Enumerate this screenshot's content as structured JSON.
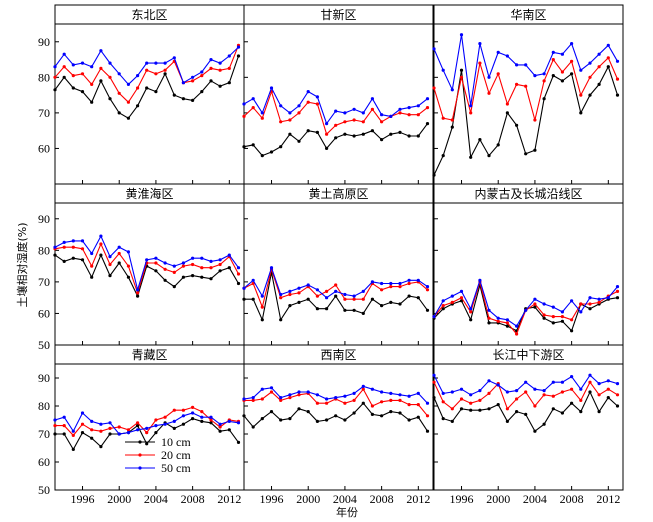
{
  "chart_data": {
    "type": "line",
    "ylabel": "土壤相对湿度(%)",
    "xlabel": "年份",
    "xlim": [
      1993,
      2013.6
    ],
    "ylim": [
      50,
      95
    ],
    "row_yticks": [
      [
        50,
        60,
        70,
        80,
        90
      ],
      [
        50,
        60,
        70,
        80,
        90
      ],
      [
        50,
        60,
        70,
        80,
        90
      ]
    ],
    "row_yticks_shown": [
      [
        "60",
        "70",
        "80",
        "90"
      ],
      [
        "50",
        "60",
        "70",
        "80",
        "90"
      ],
      [
        "50",
        "60",
        "70",
        "80",
        "90"
      ]
    ],
    "xticks": [
      1996,
      2000,
      2004,
      2008,
      2012
    ],
    "xticks_shown": [
      "1996",
      "2000",
      "2004",
      "2008",
      "2012"
    ],
    "x": [
      1993,
      1994,
      1995,
      1996,
      1997,
      1998,
      1999,
      2000,
      2001,
      2002,
      2003,
      2004,
      2005,
      2006,
      2007,
      2008,
      2009,
      2010,
      2011,
      2012,
      2013
    ],
    "series_names": [
      "10 cm",
      "20 cm",
      "50 cm"
    ],
    "series_colors": [
      "#000000",
      "#ff0000",
      "#0000ff"
    ],
    "panels": [
      {
        "title": "东北区",
        "series": [
          [
            76.5,
            80,
            77,
            76,
            73,
            79,
            74,
            70,
            68.5,
            72,
            77,
            76,
            81,
            75,
            74,
            73.5,
            76,
            79,
            77.5,
            78.5,
            86
          ],
          [
            80,
            83,
            80.5,
            81,
            78,
            82.5,
            80,
            75.5,
            73,
            77,
            82,
            81,
            82,
            84.5,
            78.5,
            79,
            80.5,
            82.5,
            82,
            82.5,
            89
          ],
          [
            83,
            86.5,
            83.5,
            84,
            83,
            87.5,
            84,
            81,
            78,
            80.5,
            84,
            84,
            84,
            85.5,
            78.5,
            80,
            81.5,
            85,
            84,
            86,
            88.5
          ]
        ]
      },
      {
        "title": "甘新区",
        "series": [
          [
            60.5,
            61,
            58,
            59,
            60.5,
            64,
            62,
            65,
            64.5,
            60,
            63,
            64,
            63.5,
            64,
            65,
            62.5,
            64,
            64.5,
            63.5,
            63.5,
            67
          ],
          [
            69,
            71.5,
            68.5,
            76,
            67.5,
            68,
            70,
            73,
            72.5,
            64,
            66.5,
            67.5,
            68,
            67.5,
            71,
            67.5,
            69,
            70,
            69.5,
            69.5,
            71.5
          ],
          [
            72.5,
            74,
            70,
            77,
            72,
            70,
            72,
            76,
            74.5,
            67,
            70.5,
            70,
            71,
            70,
            74,
            69.5,
            69,
            71,
            71.5,
            72,
            74
          ]
        ]
      },
      {
        "title": "华南区",
        "series": [
          [
            52.5,
            58,
            66,
            82,
            57.5,
            62.5,
            58,
            61,
            70,
            66.5,
            58.5,
            59.5,
            74,
            80.5,
            79,
            81,
            70,
            75,
            78,
            83,
            75
          ],
          [
            77,
            68.5,
            68,
            80,
            70,
            84,
            75.5,
            81,
            72.5,
            78,
            77.5,
            68,
            79,
            85,
            81.5,
            84.5,
            75,
            80,
            83,
            85.5,
            79.5
          ],
          [
            88,
            82,
            76.5,
            92,
            72,
            89.5,
            80,
            87,
            86,
            83.5,
            83.5,
            80.5,
            81,
            87,
            86.5,
            89.5,
            82,
            84,
            86.5,
            89,
            84.5
          ]
        ]
      },
      {
        "title": "黄淮海区",
        "series": [
          [
            78.5,
            76.5,
            77.5,
            77,
            71.5,
            78.5,
            72,
            76,
            71.5,
            65.5,
            75,
            73.5,
            70.5,
            68.5,
            71.5,
            72,
            71.5,
            71,
            73.5,
            74.5,
            69.5
          ],
          [
            80.5,
            81,
            81,
            80.5,
            75,
            82,
            75.5,
            79,
            75,
            66.5,
            76,
            76,
            74,
            73,
            75,
            75.5,
            74.5,
            74.5,
            75.5,
            78,
            72.5
          ],
          [
            81,
            82.5,
            83,
            83,
            79,
            84.5,
            78,
            81,
            79.5,
            67.5,
            77,
            77.5,
            76,
            75,
            76,
            77.5,
            77.5,
            76.5,
            77,
            78.5,
            74.5
          ]
        ]
      },
      {
        "title": "黄土高原区",
        "series": [
          [
            64.5,
            64.5,
            58,
            73,
            58,
            62.5,
            63.5,
            64.5,
            61.5,
            61.5,
            65.5,
            61,
            61,
            60,
            64.5,
            62.5,
            63.5,
            63,
            65.5,
            65,
            61
          ],
          [
            68,
            69.5,
            62,
            74,
            65,
            66,
            66.5,
            68.5,
            65.5,
            67,
            69,
            64.5,
            64.5,
            64.5,
            69.5,
            67.5,
            68.5,
            68.5,
            69.5,
            70,
            67.5
          ],
          [
            68,
            70.5,
            65.5,
            74.5,
            66,
            67,
            68,
            69,
            67.5,
            65,
            67,
            66,
            65.5,
            67,
            70,
            69.5,
            69.5,
            69.5,
            70.5,
            70.5,
            68.5
          ]
        ]
      },
      {
        "title": "内蒙古及长城沿线区",
        "series": [
          [
            58.5,
            61.5,
            63,
            64,
            58,
            69,
            57,
            57,
            56,
            54.5,
            61.5,
            62,
            58.5,
            57,
            57.5,
            54.5,
            63,
            61.5,
            63,
            64.5,
            65
          ],
          [
            59,
            62.5,
            63.5,
            65,
            60.5,
            70,
            58.5,
            57.5,
            57,
            53.5,
            61,
            63,
            59.5,
            59,
            59,
            58,
            63,
            63,
            63.5,
            65.5,
            67
          ],
          [
            59,
            64,
            65.5,
            67,
            61.5,
            70.5,
            61,
            58.5,
            58,
            56,
            61,
            64.5,
            63,
            62,
            60.5,
            64,
            60.5,
            65,
            64.5,
            65,
            68.5
          ]
        ]
      },
      {
        "title": "青藏区",
        "series": [
          [
            70,
            70,
            64.5,
            70.5,
            68.5,
            65.5,
            70,
            70,
            70.5,
            73,
            66.5,
            70.5,
            74,
            72,
            73.5,
            75.5,
            74.5,
            74,
            71,
            71.5,
            67
          ],
          [
            73,
            73,
            69.5,
            73.5,
            71.5,
            71,
            72,
            72.5,
            71.5,
            74,
            70.5,
            75,
            76,
            78.5,
            78.5,
            79.5,
            78,
            75,
            72.5,
            75,
            74.5
          ],
          [
            75,
            76,
            71,
            77.5,
            74.5,
            73.5,
            74,
            70,
            70.5,
            71.5,
            72,
            73,
            73.5,
            74.5,
            76.5,
            77.5,
            76,
            76,
            73.5,
            74.5,
            74
          ]
        ]
      },
      {
        "title": "西南区",
        "series": [
          [
            76.5,
            72.5,
            75.5,
            78,
            75,
            75.5,
            79,
            78,
            74.5,
            75,
            76.5,
            75,
            77.5,
            81,
            77,
            76.5,
            78,
            77.5,
            75,
            76,
            71
          ],
          [
            82,
            82,
            82.5,
            85,
            82,
            83,
            84,
            84.5,
            81,
            81,
            82.5,
            81,
            82,
            86,
            80,
            81.5,
            82,
            82,
            80.5,
            80.5,
            76.5
          ],
          [
            82.5,
            83,
            86,
            86.5,
            83,
            84,
            85,
            85,
            84,
            82.5,
            83,
            83.5,
            84.5,
            87,
            86,
            85,
            84.5,
            84,
            83.5,
            84.5,
            81
          ]
        ]
      },
      {
        "title": "长江中下游区",
        "series": [
          [
            83,
            75.5,
            74.5,
            79,
            78.5,
            78.5,
            79,
            80.5,
            74.5,
            78,
            77,
            71,
            73.5,
            79,
            77.5,
            81,
            78,
            85,
            78,
            83,
            80
          ],
          [
            88.5,
            81.5,
            79,
            82.5,
            81,
            82,
            84.5,
            88,
            79,
            82.5,
            85,
            80,
            84,
            83.5,
            85,
            86,
            82,
            88.5,
            84,
            86,
            84
          ],
          [
            91,
            84.5,
            85,
            86,
            84,
            85.5,
            89,
            87.5,
            85,
            85.5,
            88.5,
            86,
            85.5,
            88.5,
            88.5,
            90.5,
            86,
            91,
            88,
            89,
            88
          ]
        ]
      }
    ]
  }
}
